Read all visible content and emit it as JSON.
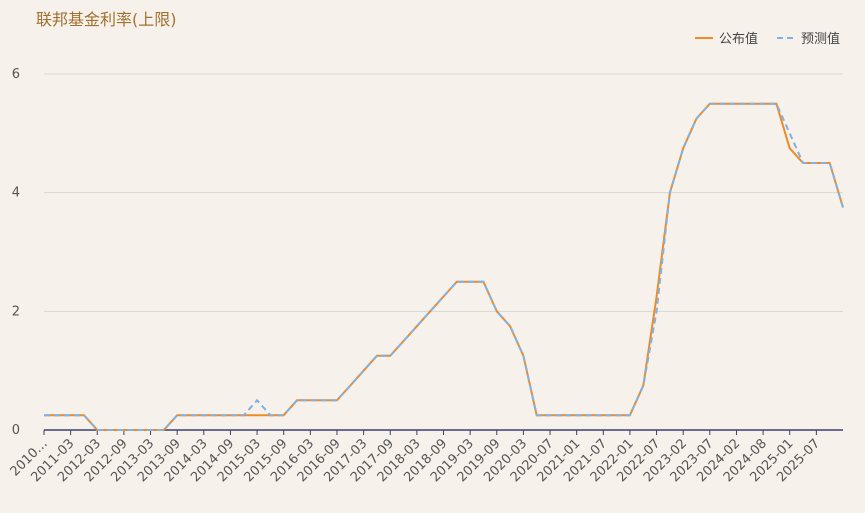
{
  "chart_data": {
    "type": "line",
    "title": "联邦基金利率(上限)",
    "categories": [
      "2010…",
      null,
      "2011-03",
      null,
      "2012-03",
      null,
      "2012-09",
      null,
      "2013-03",
      null,
      "2013-09",
      null,
      "2014-03",
      null,
      "2014-09",
      null,
      "2015-03",
      null,
      "2015-09",
      null,
      "2016-03",
      null,
      "2016-09",
      null,
      "2017-03",
      null,
      "2017-09",
      null,
      "2018-03",
      null,
      "2018-09",
      null,
      "2019-03",
      null,
      "2019-09",
      null,
      "2020-03",
      null,
      "2020-07",
      null,
      "2021-01",
      null,
      "2021-07",
      null,
      "2022-01",
      null,
      "2022-07",
      null,
      "2023-02",
      null,
      "2023-07",
      null,
      "2024-02",
      null,
      "2024-08",
      null,
      "2025-01",
      null,
      "2025-07",
      null,
      null
    ],
    "series": [
      {
        "name": "公布值",
        "color": "#f08a24",
        "dashed": false,
        "values": [
          0.25,
          0.25,
          0.25,
          0.25,
          0,
          0,
          0,
          0,
          0,
          0,
          0.25,
          0.25,
          0.25,
          0.25,
          0.25,
          0.25,
          0.25,
          0.25,
          0.25,
          0.5,
          0.5,
          0.5,
          0.5,
          0.75,
          1,
          1.25,
          1.25,
          1.5,
          1.75,
          2,
          2.25,
          2.5,
          2.5,
          2.5,
          2,
          1.75,
          1.25,
          0.25,
          0.25,
          0.25,
          0.25,
          0.25,
          0.25,
          0.25,
          0.25,
          0.75,
          2.25,
          4,
          4.75,
          5.25,
          5.5,
          5.5,
          5.5,
          5.5,
          5.5,
          5.5,
          4.75,
          4.5,
          4.5,
          4.5,
          3.75
        ]
      },
      {
        "name": "预测值",
        "color": "#7fb2e5",
        "dashed": true,
        "values": [
          0.25,
          0.25,
          0.25,
          0.25,
          0,
          0,
          0,
          0,
          0,
          0,
          0.25,
          0.25,
          0.25,
          0.25,
          0.25,
          0.25,
          0.5,
          0.25,
          0.25,
          0.5,
          0.5,
          0.5,
          0.5,
          0.75,
          1,
          1.25,
          1.25,
          1.5,
          1.75,
          2,
          2.25,
          2.5,
          2.5,
          2.5,
          2,
          1.75,
          1.25,
          0.25,
          0.25,
          0.25,
          0.25,
          0.25,
          0.25,
          0.25,
          0.25,
          0.75,
          2,
          4,
          4.75,
          5.25,
          5.5,
          5.5,
          5.5,
          5.5,
          5.5,
          5.5,
          5,
          4.5,
          4.5,
          4.5,
          3.75
        ]
      }
    ],
    "ylim": [
      0,
      6
    ],
    "yticks": [
      0,
      2,
      4,
      6
    ],
    "grid": true,
    "legend": "top-right"
  }
}
